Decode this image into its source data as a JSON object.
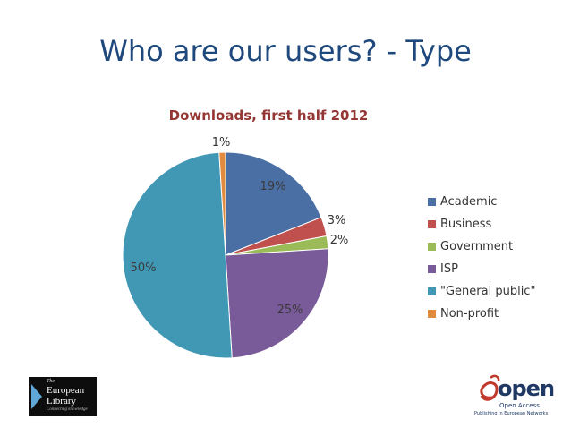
{
  "slide": {
    "title": "Who are our users? - Type"
  },
  "chart_data": {
    "type": "pie",
    "title": "Downloads, first half 2012",
    "categories": [
      "Academic",
      "Business",
      "Government",
      "ISP",
      "\"General public\"",
      "Non-profit"
    ],
    "values": [
      19,
      3,
      2,
      25,
      50,
      1
    ],
    "labels": [
      "19%",
      "3%",
      "2%",
      "25%",
      "50%",
      "1%"
    ],
    "colors": [
      "#4a6fa5",
      "#c0504d",
      "#9bbb59",
      "#7a5b99",
      "#4198b4",
      "#e08b3e"
    ],
    "legend_position": "right"
  },
  "logos": {
    "left": {
      "line1": "The",
      "line2": "European",
      "line3": "Library",
      "line4": "Connecting knowledge"
    },
    "right": {
      "word": "open",
      "sub1": "Open Access",
      "sub2": "Publishing in European Networks"
    }
  }
}
